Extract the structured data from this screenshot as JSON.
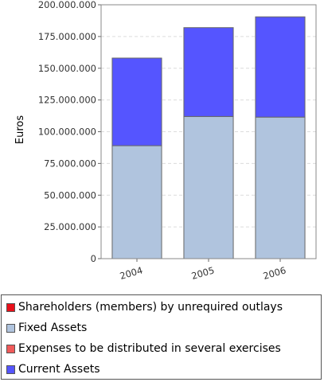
{
  "chart_data": {
    "type": "bar",
    "stacked": true,
    "categories": [
      "2004",
      "2005",
      "2006"
    ],
    "ylabel": "Euros",
    "xlabel": "",
    "ylim": [
      0,
      200000000
    ],
    "yticks": [
      0,
      25000000,
      50000000,
      75000000,
      100000000,
      125000000,
      150000000,
      175000000,
      200000000
    ],
    "ytick_labels": [
      "0",
      "25.000.000",
      "50.000.000",
      "75.000.000",
      "100.000.000",
      "125.000.000",
      "150.000.000",
      "175.000.000",
      "200.000.000"
    ],
    "grid": true,
    "legend_position": "bottom",
    "series": [
      {
        "name": "Shareholders (members) by unrequired outlays",
        "color": "#e8101a",
        "values": [
          0,
          0,
          0
        ]
      },
      {
        "name": "Fixed Assets",
        "color": "#b0c4de",
        "values": [
          89000000,
          112000000,
          111500000
        ]
      },
      {
        "name": "Expenses to be distributed in several exercises",
        "color": "#f05a5a",
        "values": [
          0,
          0,
          0
        ]
      },
      {
        "name": "Current Assets",
        "color": "#5555ff",
        "values": [
          69000000,
          70000000,
          79000000
        ]
      }
    ]
  }
}
